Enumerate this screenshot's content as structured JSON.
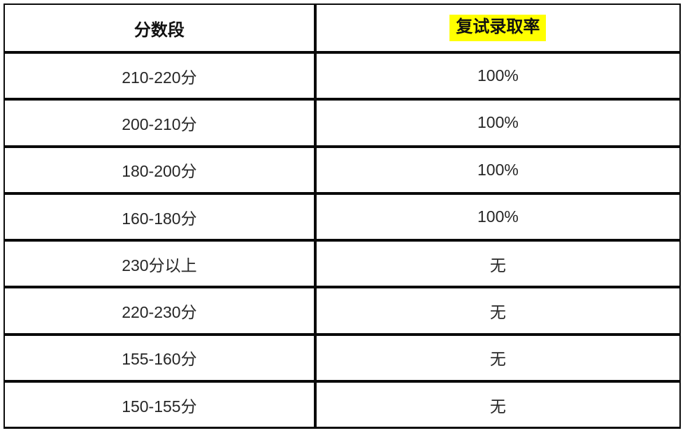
{
  "table": {
    "columns": [
      {
        "label": "分数段",
        "highlight": false
      },
      {
        "label": "复试录取率",
        "highlight": true
      }
    ],
    "rows": [
      {
        "range": "210-220分",
        "rate": "100%"
      },
      {
        "range": "200-210分",
        "rate": "100%"
      },
      {
        "range": "180-200分",
        "rate": "100%"
      },
      {
        "range": "160-180分",
        "rate": "100%"
      },
      {
        "range": "230分以上",
        "rate": "无"
      },
      {
        "range": "220-230分",
        "rate": "无"
      },
      {
        "range": "155-160分",
        "rate": "无"
      },
      {
        "range": "150-155分",
        "rate": "无"
      }
    ],
    "highlight_color": "#ffff00",
    "border_color": "#0a0a0a"
  }
}
